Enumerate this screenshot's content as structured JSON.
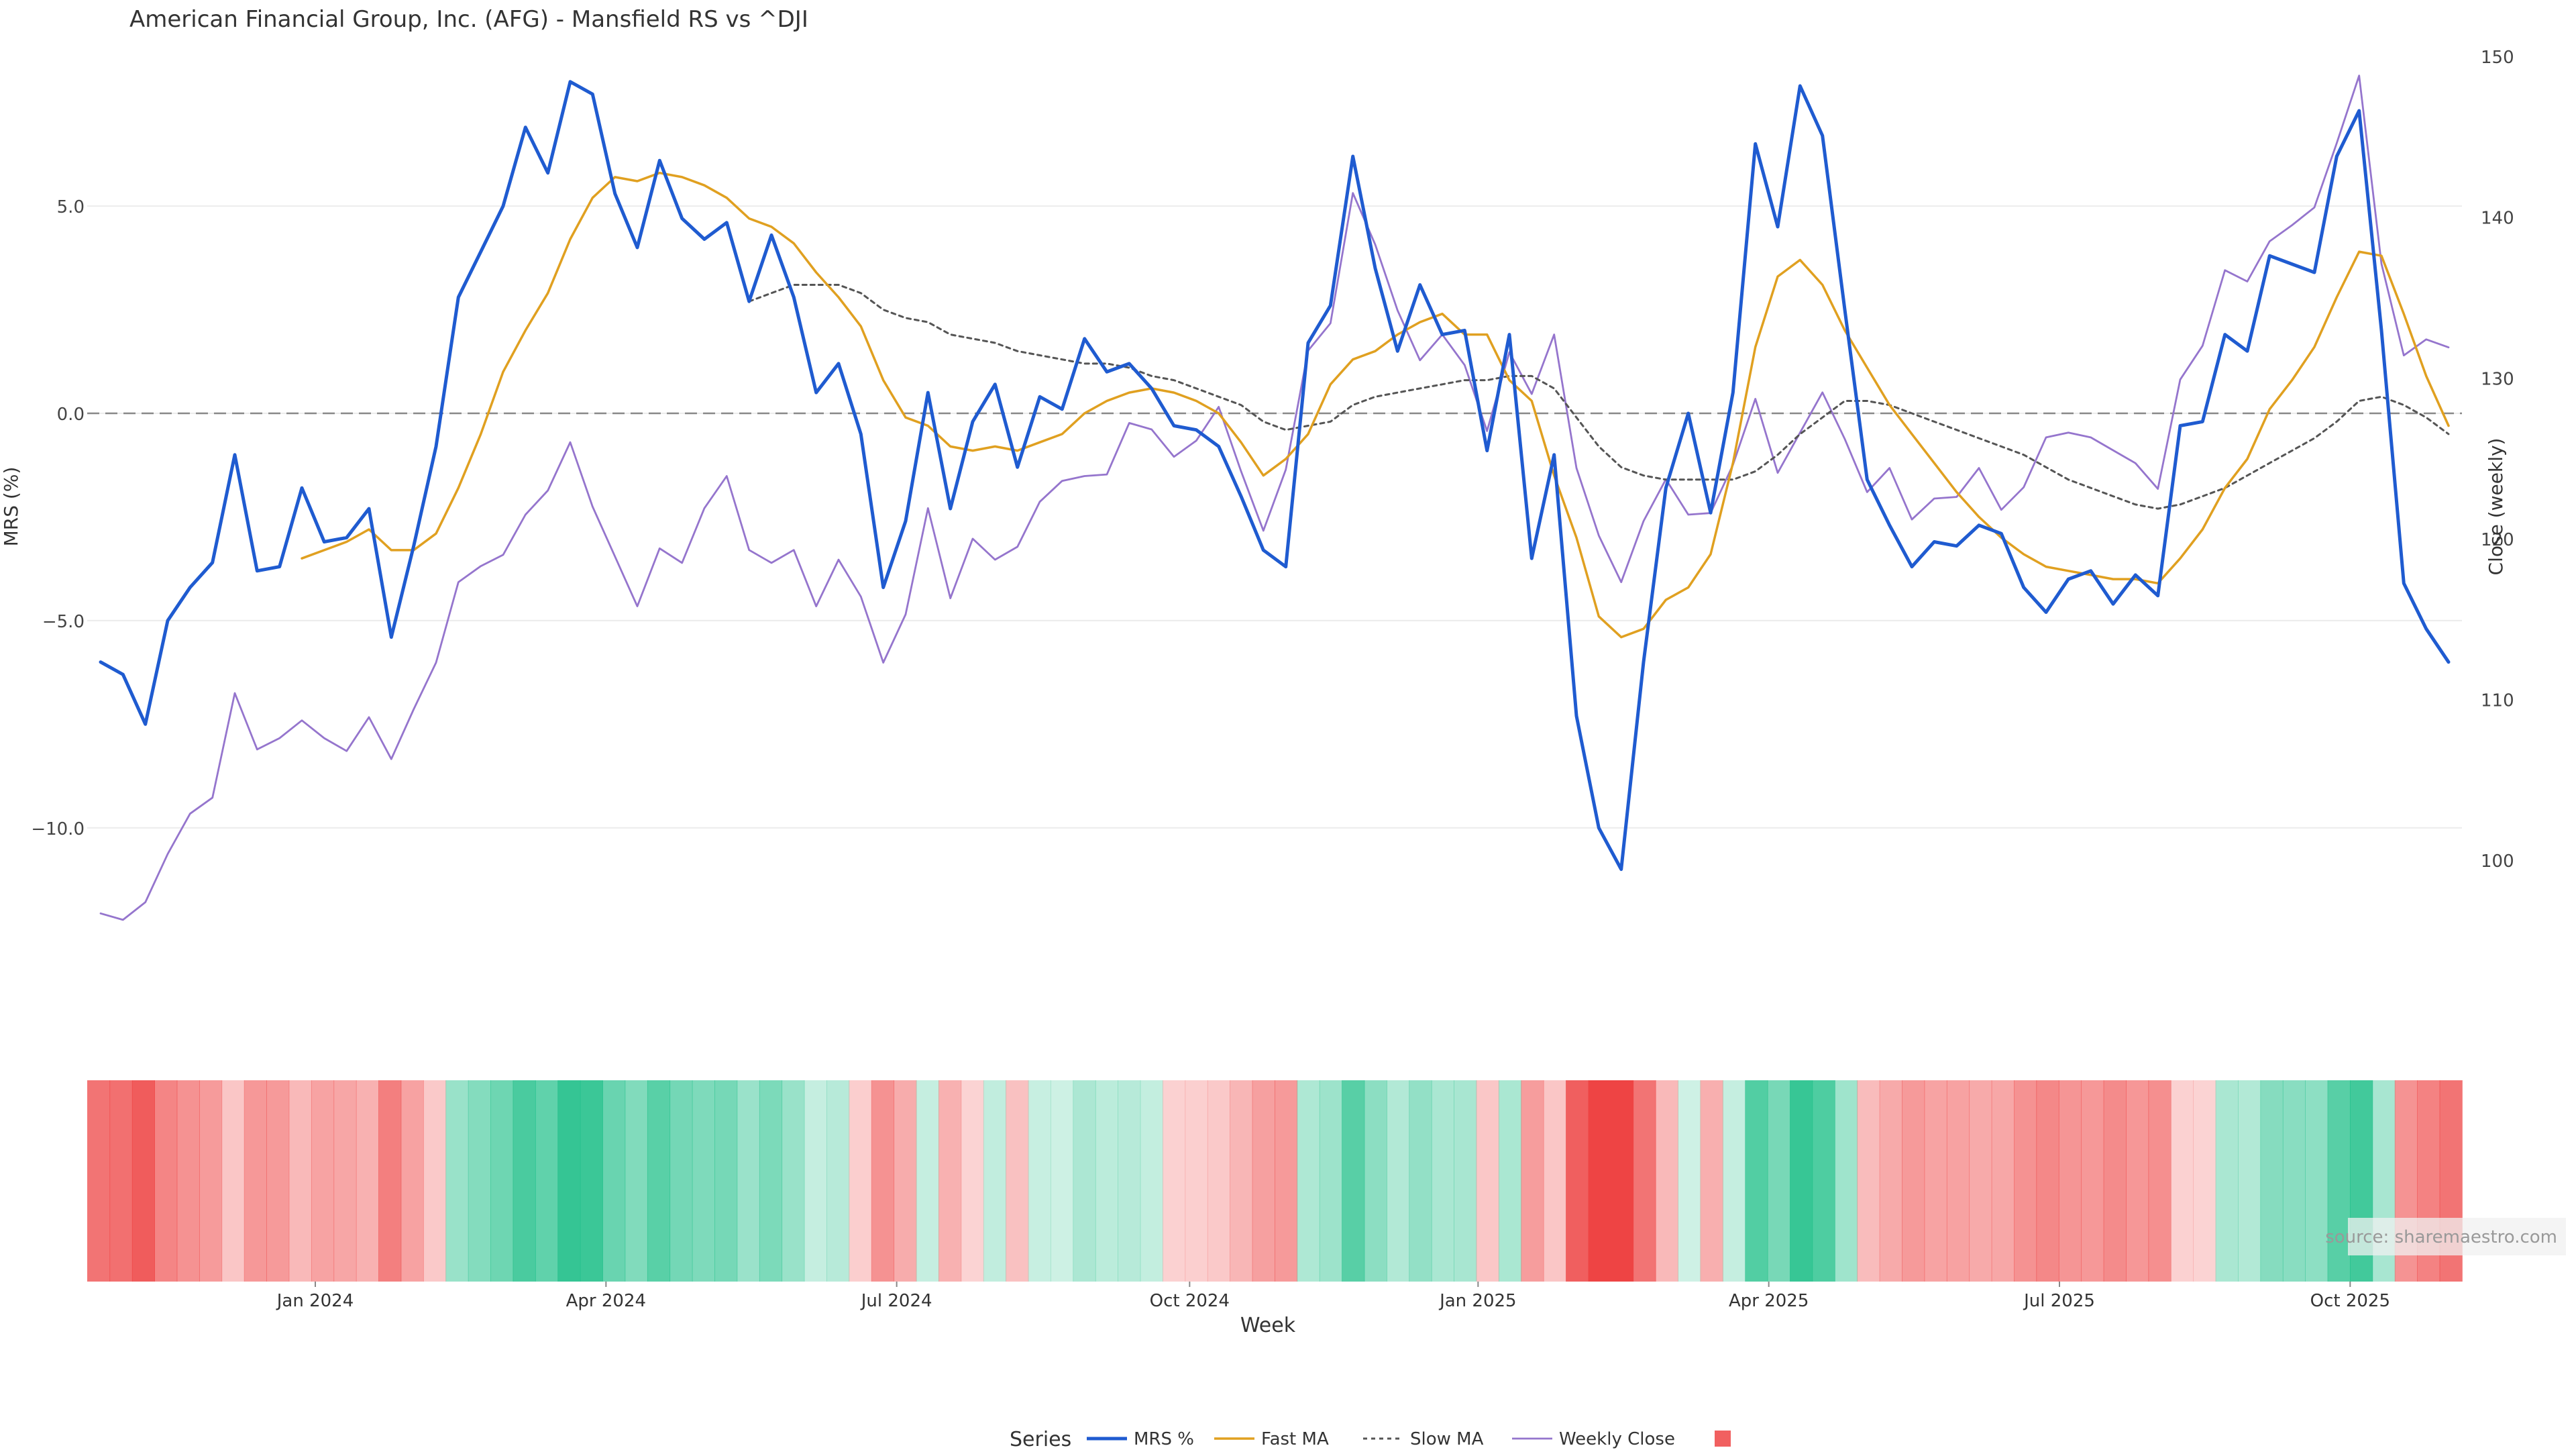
{
  "chart_data": {
    "type": "line",
    "title": "American Financial Group, Inc. (AFG) - Mansfield RS vs ^DJI",
    "xlabel": "Week",
    "ylabel_left": "MRS (%)",
    "ylabel_right": "Close (weekly)",
    "x_tick_labels": [
      "Jan 2024",
      "Apr 2024",
      "Jul 2024",
      "Oct 2024",
      "Jan 2025",
      "Apr 2025",
      "Jul 2025",
      "Oct 2025"
    ],
    "y_left_ticks": [
      {
        "value": 5,
        "label": "5.0"
      },
      {
        "value": 0,
        "label": "0.0"
      },
      {
        "value": -5,
        "label": "−5.0"
      },
      {
        "value": -10,
        "label": "−10.0"
      }
    ],
    "y_right_ticks": [
      "100",
      "110",
      "120",
      "130",
      "140",
      "150"
    ],
    "ylim_left": [
      -13.5,
      9.0
    ],
    "ylim_right": [
      93.0,
      151.0
    ],
    "grid": true,
    "zero_line": true,
    "watermark": "source: sharemaestro.com",
    "legend": {
      "title": "Series",
      "placement": "bottom-center",
      "items": [
        "MRS %",
        "Fast MA",
        "Slow MA",
        "Weekly Close",
        ""
      ]
    },
    "colors": {
      "mrs": "#1f5bd0",
      "fast_ma": "#e0a020",
      "slow_ma": "#555555",
      "close": "#9575cd",
      "positive": "#22c08a",
      "negative": "#ee4444"
    },
    "series": [
      {
        "name": "MRS %",
        "axis": "left",
        "values": [
          -6.0,
          -6.3,
          -7.5,
          -5.0,
          -4.2,
          -3.6,
          -1.0,
          -3.8,
          -3.7,
          -1.8,
          -3.1,
          -3.0,
          -2.3,
          -5.4,
          -3.2,
          -0.8,
          2.8,
          3.9,
          5.0,
          6.9,
          5.8,
          8.0,
          7.7,
          5.3,
          4.0,
          6.1,
          4.7,
          4.2,
          4.6,
          2.7,
          4.3,
          2.8,
          0.5,
          1.2,
          -0.5,
          -4.2,
          -2.6,
          0.5,
          -2.3,
          -0.2,
          0.7,
          -1.3,
          0.4,
          0.1,
          1.8,
          1.0,
          1.2,
          0.6,
          -0.3,
          -0.4,
          -0.8,
          -2.0,
          -3.3,
          -3.7,
          1.7,
          2.6,
          6.2,
          3.5,
          1.5,
          3.1,
          1.9,
          2.0,
          -0.9,
          1.9,
          -3.5,
          -1.0,
          -7.3,
          -10.0,
          -11.0,
          -6.0,
          -1.8,
          0.0,
          -2.4,
          0.5,
          6.5,
          4.5,
          7.9,
          6.7,
          2.5,
          -1.6,
          -2.7,
          -3.7,
          -3.1,
          -3.2,
          -2.7,
          -2.9,
          -4.2,
          -4.8,
          -4.0,
          -3.8,
          -4.6,
          -3.9,
          -4.4,
          -0.3,
          -0.2,
          1.9,
          1.5,
          3.8,
          3.6,
          3.4,
          6.2,
          7.3,
          2.0,
          -4.1,
          -5.2,
          -6.0
        ]
      },
      {
        "name": "Fast MA",
        "axis": "left",
        "values": [
          null,
          null,
          null,
          null,
          null,
          null,
          null,
          null,
          null,
          -3.5,
          -3.3,
          -3.1,
          -2.8,
          -3.3,
          -3.3,
          -2.9,
          -1.8,
          -0.5,
          1.0,
          2.0,
          2.9,
          4.2,
          5.2,
          5.7,
          5.6,
          5.8,
          5.7,
          5.5,
          5.2,
          4.7,
          4.5,
          4.1,
          3.4,
          2.8,
          2.1,
          0.8,
          -0.1,
          -0.3,
          -0.8,
          -0.9,
          -0.8,
          -0.9,
          -0.7,
          -0.5,
          0.0,
          0.3,
          0.5,
          0.6,
          0.5,
          0.3,
          0.0,
          -0.7,
          -1.5,
          -1.1,
          -0.5,
          0.7,
          1.3,
          1.5,
          1.9,
          2.2,
          2.4,
          1.9,
          1.9,
          0.8,
          0.3,
          -1.5,
          -3.0,
          -4.9,
          -5.4,
          -5.2,
          -4.5,
          -4.2,
          -3.4,
          -1.2,
          1.6,
          3.3,
          3.7,
          3.1,
          2.0,
          1.1,
          0.2,
          -0.5,
          -1.2,
          -1.9,
          -2.5,
          -3.0,
          -3.4,
          -3.7,
          -3.8,
          -3.9,
          -4.0,
          -4.0,
          -4.1,
          -3.5,
          -2.8,
          -1.8,
          -1.1,
          0.1,
          0.8,
          1.6,
          2.8,
          3.9,
          3.8,
          2.4,
          0.9,
          -0.3
        ]
      },
      {
        "name": "Slow MA",
        "axis": "left",
        "values": [
          null,
          null,
          null,
          null,
          null,
          null,
          null,
          null,
          null,
          null,
          null,
          null,
          null,
          null,
          null,
          null,
          null,
          null,
          null,
          null,
          null,
          null,
          null,
          null,
          null,
          null,
          null,
          null,
          null,
          2.7,
          2.9,
          3.1,
          3.1,
          3.1,
          2.9,
          2.5,
          2.3,
          2.2,
          1.9,
          1.8,
          1.7,
          1.5,
          1.4,
          1.3,
          1.2,
          1.2,
          1.1,
          0.9,
          0.8,
          0.6,
          0.4,
          0.2,
          -0.2,
          -0.4,
          -0.3,
          -0.2,
          0.2,
          0.4,
          0.5,
          0.6,
          0.7,
          0.8,
          0.8,
          0.9,
          0.9,
          0.6,
          -0.1,
          -0.8,
          -1.3,
          -1.5,
          -1.6,
          -1.6,
          -1.6,
          -1.6,
          -1.4,
          -1.0,
          -0.5,
          -0.1,
          0.3,
          0.3,
          0.2,
          0.0,
          -0.2,
          -0.4,
          -0.6,
          -0.8,
          -1.0,
          -1.3,
          -1.6,
          -1.8,
          -2.0,
          -2.2,
          -2.3,
          -2.2,
          -2.0,
          -1.8,
          -1.5,
          -1.2,
          -0.9,
          -0.6,
          -0.2,
          0.3,
          0.4,
          0.2,
          -0.1,
          -0.5
        ]
      },
      {
        "name": "Weekly Close",
        "axis": "right",
        "values": [
          96.7,
          96.3,
          97.4,
          100.4,
          102.9,
          103.9,
          110.4,
          106.9,
          107.6,
          108.7,
          107.6,
          106.8,
          108.9,
          106.3,
          109.4,
          112.3,
          117.3,
          118.3,
          119.0,
          121.5,
          123.0,
          126.0,
          122.0,
          118.9,
          115.8,
          119.4,
          118.5,
          121.9,
          123.9,
          119.3,
          118.5,
          119.3,
          115.8,
          118.7,
          116.4,
          112.3,
          115.3,
          121.9,
          116.3,
          120.0,
          118.7,
          119.5,
          122.3,
          123.6,
          123.9,
          124.0,
          127.2,
          126.8,
          125.1,
          126.1,
          128.2,
          124.2,
          120.5,
          124.3,
          131.7,
          133.4,
          141.5,
          138.3,
          134.2,
          131.1,
          132.7,
          130.8,
          126.7,
          131.6,
          129.0,
          132.7,
          124.4,
          120.2,
          117.3,
          121.1,
          123.7,
          121.5,
          121.6,
          124.6,
          128.7,
          124.1,
          126.6,
          129.1,
          126.2,
          122.9,
          124.4,
          121.2,
          122.5,
          122.6,
          124.4,
          121.8,
          123.2,
          126.3,
          126.6,
          126.3,
          125.5,
          124.7,
          123.1,
          129.9,
          132.0,
          136.7,
          136.0,
          138.5,
          139.5,
          140.6,
          144.6,
          148.8,
          137.1,
          131.4,
          132.4,
          131.9
        ]
      }
    ],
    "bands": {
      "note": "Colored strip under the plot: each week tinted green when MRS% is positive and red when negative; deeper tint for larger magnitude.",
      "source_series": "MRS %"
    }
  }
}
